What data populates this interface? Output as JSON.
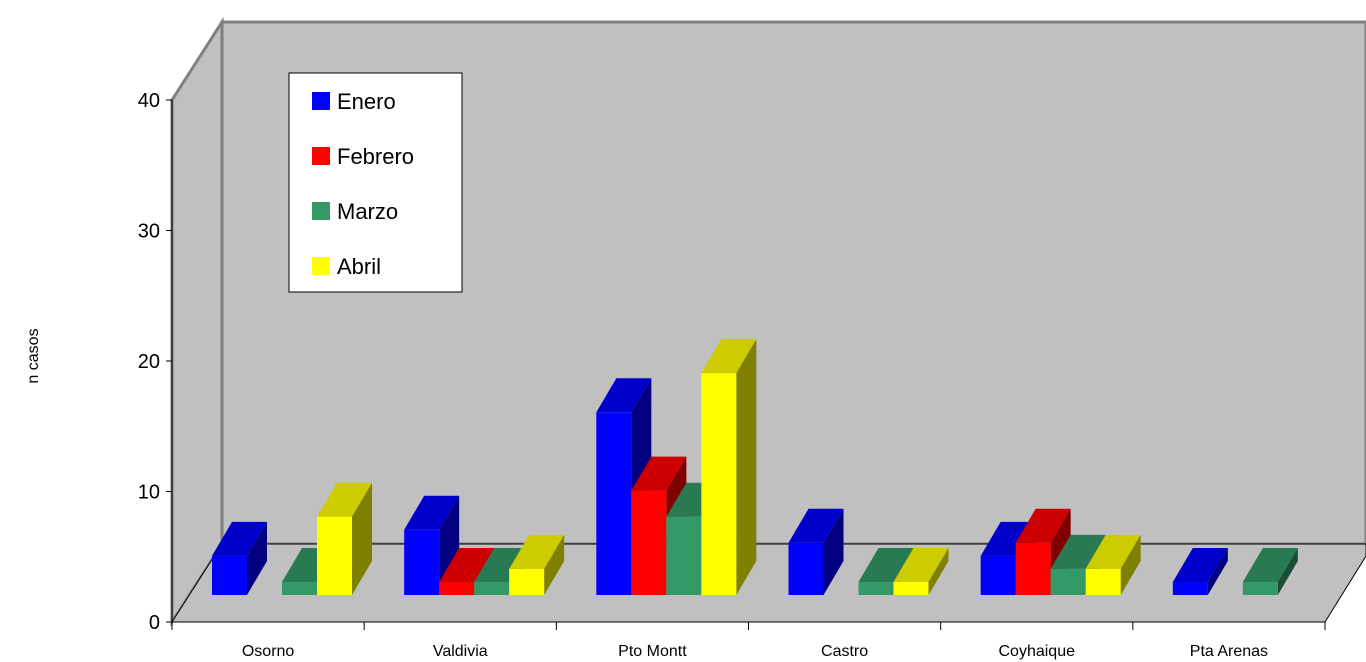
{
  "chart_data": {
    "type": "bar",
    "subtype": "3d-clustered",
    "title": "",
    "xlabel": "",
    "ylabel": "n casos",
    "ylim": [
      0,
      40
    ],
    "yticks": [
      0,
      10,
      20,
      30,
      40
    ],
    "grid": false,
    "legend_position": "top-left",
    "categories": [
      "Osorno",
      "Valdivia",
      "Pto Montt",
      "Castro",
      "Coyhaique",
      "Pta Arenas"
    ],
    "series": [
      {
        "name": "Enero",
        "color": "#0000ff",
        "values": [
          3,
          5,
          14,
          4,
          3,
          1
        ]
      },
      {
        "name": "Febrero",
        "color": "#ff0000",
        "values": [
          0,
          1,
          8,
          0,
          4,
          0
        ]
      },
      {
        "name": "Marzo",
        "color": "#339966",
        "values": [
          1,
          1,
          6,
          1,
          2,
          1
        ]
      },
      {
        "name": "Abril",
        "color": "#ffff00",
        "values": [
          6,
          2,
          17,
          1,
          2,
          0
        ]
      }
    ],
    "background": {
      "wall": "#c0c0c0",
      "floor": "#c0c0c0",
      "wall_edge": "#808080"
    }
  }
}
